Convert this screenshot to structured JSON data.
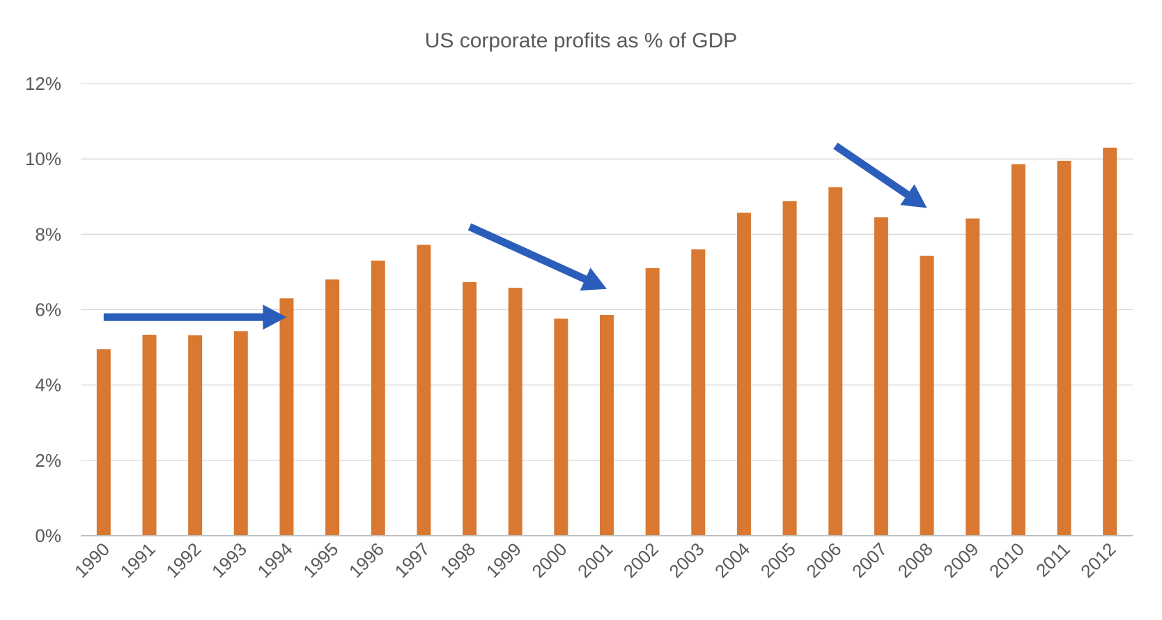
{
  "chart_data": {
    "type": "bar",
    "title": "US corporate profits as % of GDP",
    "categories": [
      "1990",
      "1991",
      "1992",
      "1993",
      "1994",
      "1995",
      "1996",
      "1997",
      "1998",
      "1999",
      "2000",
      "2001",
      "2002",
      "2003",
      "2004",
      "2005",
      "2006",
      "2007",
      "2008",
      "2009",
      "2010",
      "2011",
      "2012"
    ],
    "values": [
      4.95,
      5.33,
      5.32,
      5.43,
      6.3,
      6.8,
      7.3,
      7.72,
      6.73,
      6.58,
      5.76,
      5.86,
      7.1,
      7.6,
      8.57,
      8.88,
      9.25,
      8.45,
      7.43,
      8.42,
      9.86,
      9.95,
      10.3
    ],
    "ylim": [
      0,
      12
    ],
    "yticks": [
      "0%",
      "2%",
      "4%",
      "6%",
      "8%",
      "10%",
      "12%"
    ],
    "bar_color": "#D97831",
    "annotation_color": "#2B5EBA",
    "grid": true,
    "legend": "none",
    "annotations": [
      {
        "type": "arrow",
        "direction": "right",
        "from": [
          "1990",
          5.8
        ],
        "to": [
          "1994",
          5.8
        ]
      },
      {
        "type": "arrow",
        "direction": "down-right",
        "from": [
          "1998",
          8.2
        ],
        "to": [
          "2001",
          6.55
        ]
      },
      {
        "type": "arrow",
        "direction": "down-right",
        "from": [
          "2006",
          10.35
        ],
        "to": [
          "2008",
          8.7
        ]
      }
    ]
  }
}
